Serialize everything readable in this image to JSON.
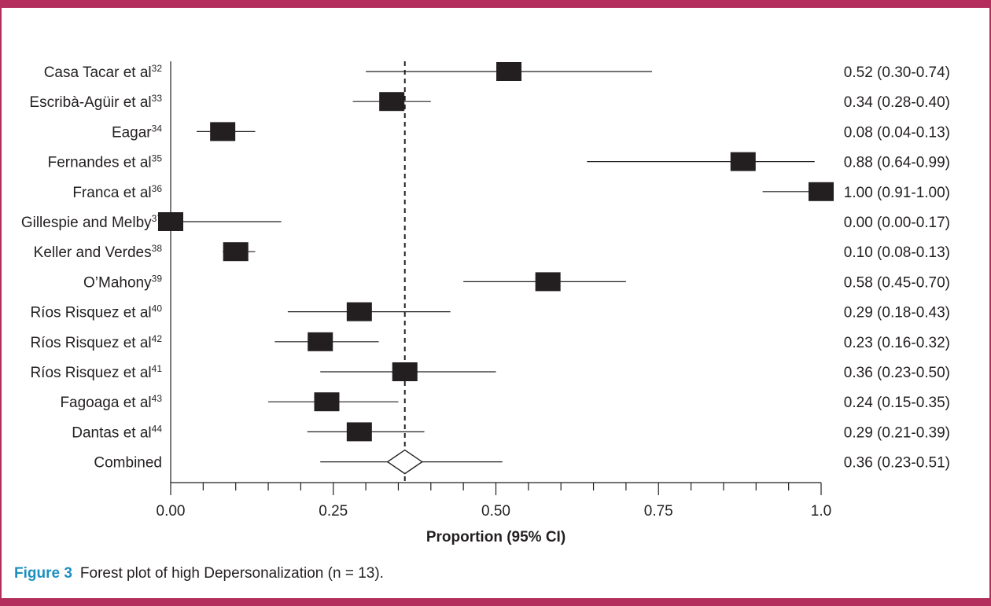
{
  "caption": {
    "label": "Figure 3",
    "text": "Forest plot of high Depersonalization (n = 13)."
  },
  "colors": {
    "frame": "#b32d5d",
    "caption_label": "#1c8fbf",
    "marker": "#231f20"
  },
  "chart_data": {
    "type": "forest",
    "xlabel": "Proportion (95% CI)",
    "xlim": [
      0,
      1
    ],
    "x_ticks": [
      0,
      0.25,
      0.5,
      0.75,
      1.0
    ],
    "x_tick_labels": [
      "0.00",
      "0.25",
      "0.50",
      "0.75",
      "1.0"
    ],
    "reference_line": 0.36,
    "studies": [
      {
        "name": "Casa Tacar et al",
        "ref": "32",
        "estimate": 0.52,
        "lower": 0.3,
        "upper": 0.74,
        "label": "0.52 (0.30-0.74)"
      },
      {
        "name": "Escribà-Agüir et al",
        "ref": "33",
        "estimate": 0.34,
        "lower": 0.28,
        "upper": 0.4,
        "label": "0.34 (0.28-0.40)"
      },
      {
        "name": "Eagar",
        "ref": "34",
        "estimate": 0.08,
        "lower": 0.04,
        "upper": 0.13,
        "label": "0.08 (0.04-0.13)"
      },
      {
        "name": "Fernandes et al",
        "ref": "35",
        "estimate": 0.88,
        "lower": 0.64,
        "upper": 0.99,
        "label": "0.88 (0.64-0.99)"
      },
      {
        "name": "Franca et al",
        "ref": "36",
        "estimate": 1.0,
        "lower": 0.91,
        "upper": 1.0,
        "label": "1.00 (0.91-1.00)"
      },
      {
        "name": "Gillespie and Melby",
        "ref": "37",
        "estimate": 0.0,
        "lower": 0.0,
        "upper": 0.17,
        "label": "0.00 (0.00-0.17)"
      },
      {
        "name": "Keller and Verdes",
        "ref": "38",
        "estimate": 0.1,
        "lower": 0.08,
        "upper": 0.13,
        "label": "0.10 (0.08-0.13)"
      },
      {
        "name": "O’Mahony",
        "ref": "39",
        "estimate": 0.58,
        "lower": 0.45,
        "upper": 0.7,
        "label": "0.58 (0.45-0.70)"
      },
      {
        "name": "Ríos Risquez et al",
        "ref": "40",
        "estimate": 0.29,
        "lower": 0.18,
        "upper": 0.43,
        "label": "0.29 (0.18-0.43)"
      },
      {
        "name": "Ríos Risquez et al",
        "ref": "42",
        "estimate": 0.23,
        "lower": 0.16,
        "upper": 0.32,
        "label": "0.23 (0.16-0.32)"
      },
      {
        "name": "Ríos Risquez et al",
        "ref": "41",
        "estimate": 0.36,
        "lower": 0.23,
        "upper": 0.5,
        "label": "0.36 (0.23-0.50)"
      },
      {
        "name": "Fagoaga et al",
        "ref": "43",
        "estimate": 0.24,
        "lower": 0.15,
        "upper": 0.35,
        "label": "0.24 (0.15-0.35)"
      },
      {
        "name": "Dantas et al",
        "ref": "44",
        "estimate": 0.29,
        "lower": 0.21,
        "upper": 0.39,
        "label": "0.29 (0.21-0.39)"
      }
    ],
    "combined": {
      "name": "Combined",
      "estimate": 0.36,
      "lower": 0.23,
      "upper": 0.51,
      "label": "0.36 (0.23-0.51)"
    }
  }
}
